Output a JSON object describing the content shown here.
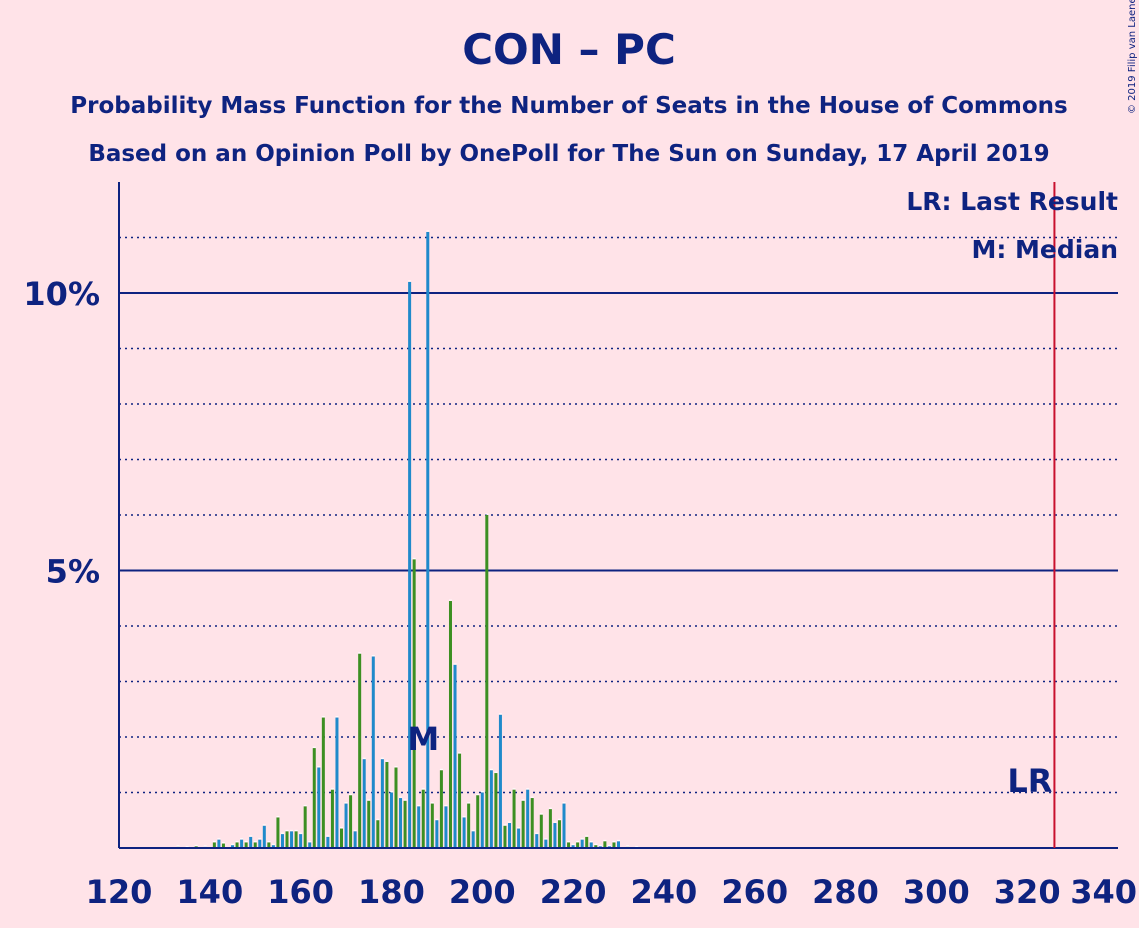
{
  "chart_data": {
    "type": "bar",
    "title": "CON – PC",
    "subtitle": [
      "Probability Mass Function for the Number of Seats in the House of Commons",
      "Based on an Opinion Poll by OnePoll for The Sun on Sunday, 17 April 2019"
    ],
    "copyright": "© 2019 Filip van Laenen",
    "xlabel": "",
    "ylabel": "",
    "xlim": [
      120,
      340
    ],
    "ylim": [
      0,
      12
    ],
    "x_ticks": [
      120,
      140,
      160,
      180,
      200,
      220,
      240,
      260,
      280,
      300,
      320,
      340
    ],
    "y_tick_labels": [
      {
        "value": 5,
        "label": "5%"
      },
      {
        "value": 10,
        "label": "10%"
      }
    ],
    "grid": {
      "solid": [
        5,
        10
      ],
      "dotted": [
        1,
        2,
        3,
        4,
        6,
        7,
        8,
        9,
        11
      ]
    },
    "legend": {
      "placement": "top-right",
      "entries": [
        "LR: Last Result",
        "M: Median"
      ]
    },
    "annotations": {
      "median": {
        "x": 187,
        "label": "M"
      },
      "last_result": {
        "x": 326,
        "label": "LR"
      }
    },
    "colors": {
      "background": "#FFE3E8",
      "text": "#0E2380",
      "last_result_line": "#C8102E",
      "bar_blue": "#1F8ACB",
      "bar_green": "#3C8F22"
    },
    "series": [
      {
        "x": [
          133,
          135,
          137,
          139,
          141,
          142,
          143,
          145,
          146,
          147,
          148,
          149,
          150,
          151,
          152,
          153,
          154,
          155,
          156,
          157,
          158,
          159,
          160,
          161,
          162,
          163,
          164,
          165,
          166,
          167,
          168,
          169,
          170,
          171,
          172,
          173,
          174,
          175,
          176,
          177,
          178,
          179,
          180,
          181,
          182,
          183,
          184,
          185,
          186,
          187,
          188,
          189,
          190,
          191,
          192,
          193,
          194,
          195,
          196,
          197,
          198,
          199,
          200,
          201,
          202,
          203,
          204,
          205,
          206,
          207,
          208,
          209,
          210,
          211,
          212,
          213,
          214,
          215,
          216,
          217,
          218,
          219,
          220,
          221,
          222,
          223,
          224,
          225,
          226,
          227,
          228,
          229,
          230,
          232,
          234
        ],
        "values": [
          0.02,
          0.01,
          0.03,
          0.02,
          0.1,
          0.15,
          0.08,
          0.05,
          0.1,
          0.15,
          0.1,
          0.2,
          0.1,
          0.15,
          0.4,
          0.1,
          0.05,
          0.55,
          0.25,
          0.3,
          0.3,
          0.3,
          0.25,
          0.75,
          0.1,
          1.8,
          1.45,
          2.35,
          0.2,
          1.05,
          2.35,
          0.35,
          0.8,
          0.95,
          0.3,
          3.5,
          1.6,
          0.85,
          3.45,
          0.5,
          1.6,
          1.55,
          1.0,
          1.45,
          0.9,
          0.85,
          10.2,
          5.2,
          0.75,
          1.05,
          11.1,
          0.8,
          0.5,
          1.4,
          0.75,
          4.45,
          3.3,
          1.7,
          0.55,
          0.8,
          0.3,
          0.95,
          1.0,
          6.0,
          1.4,
          1.35,
          2.4,
          0.4,
          0.45,
          1.05,
          0.35,
          0.85,
          1.05,
          0.9,
          0.25,
          0.6,
          0.15,
          0.7,
          0.45,
          0.5,
          0.8,
          0.1,
          0.05,
          0.1,
          0.15,
          0.2,
          0.1,
          0.05,
          0.03,
          0.12,
          0.03,
          0.1,
          0.12,
          0.02,
          0.01
        ],
        "colors": [
          "g",
          "b",
          "g",
          "b",
          "g",
          "b",
          "g",
          "b",
          "g",
          "b",
          "g",
          "b",
          "g",
          "b",
          "b",
          "g",
          "b",
          "g",
          "b",
          "g",
          "b",
          "g",
          "b",
          "g",
          "b",
          "g",
          "b",
          "g",
          "b",
          "g",
          "b",
          "g",
          "b",
          "g",
          "b",
          "g",
          "b",
          "g",
          "b",
          "g",
          "b",
          "g",
          "b",
          "g",
          "b",
          "g",
          "b",
          "g",
          "b",
          "g",
          "b",
          "g",
          "b",
          "g",
          "b",
          "g",
          "b",
          "g",
          "b",
          "g",
          "b",
          "g",
          "b",
          "g",
          "b",
          "g",
          "b",
          "g",
          "b",
          "g",
          "b",
          "g",
          "b",
          "g",
          "b",
          "g",
          "b",
          "g",
          "b",
          "g",
          "b",
          "g",
          "b",
          "g",
          "b",
          "g",
          "b",
          "g",
          "b",
          "g",
          "b",
          "g",
          "b",
          "g",
          "b"
        ]
      }
    ]
  }
}
